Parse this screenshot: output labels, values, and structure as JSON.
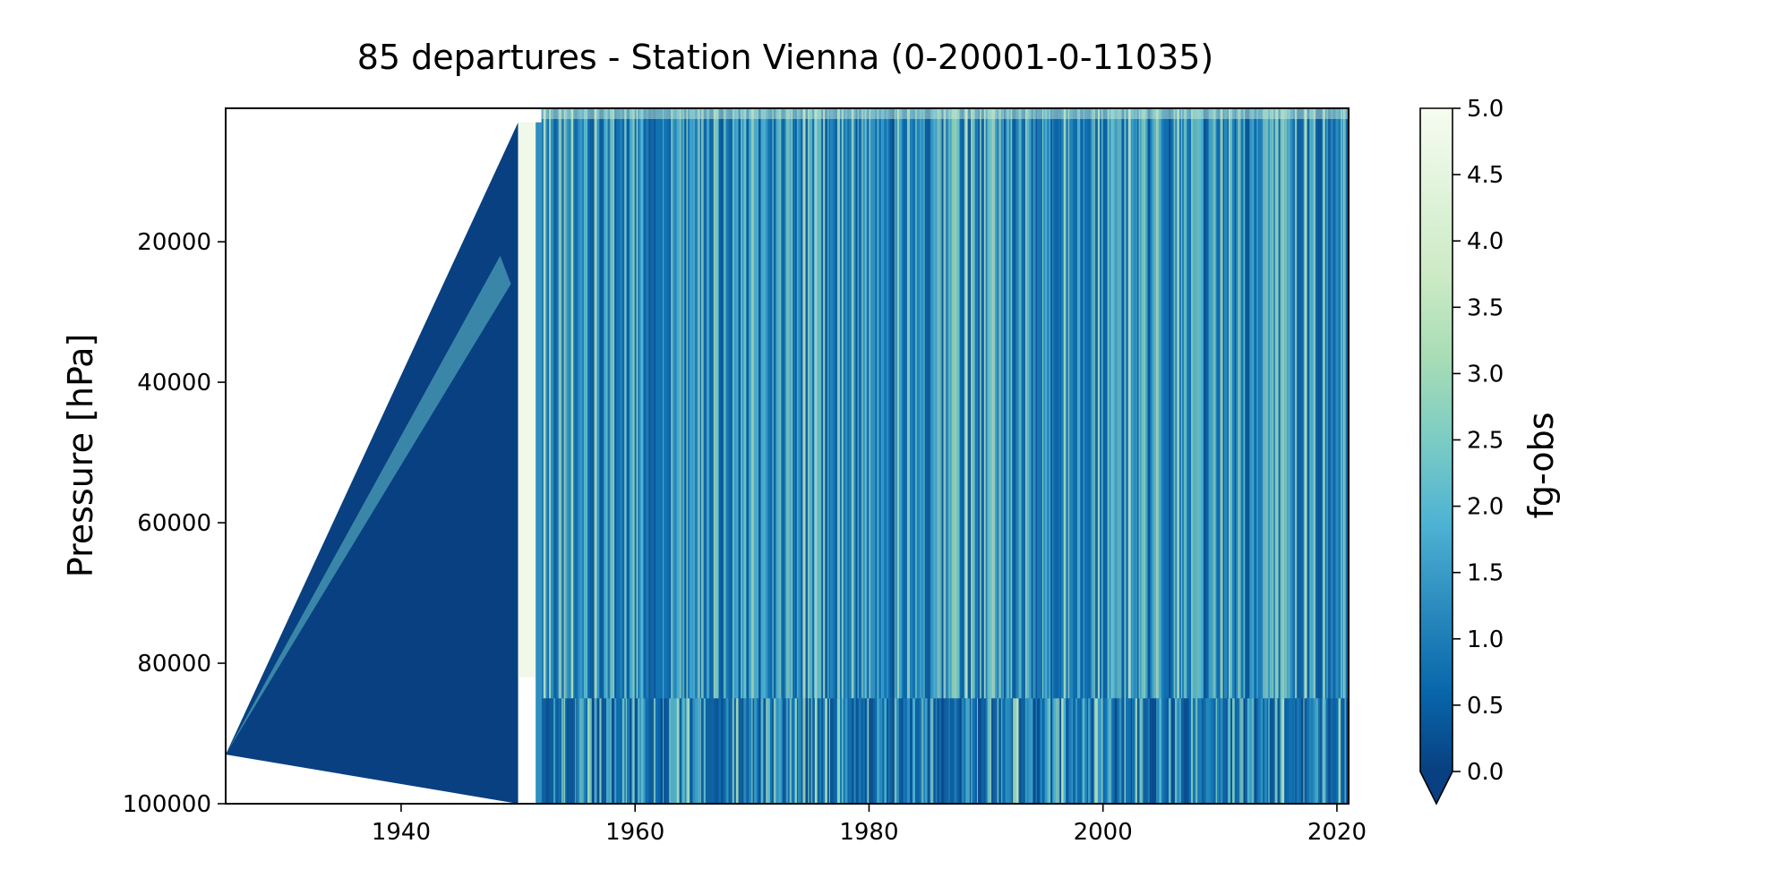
{
  "chart_data": {
    "type": "heatmap",
    "title": "85 departures - Station Vienna (0-20001-0-11035)",
    "xlabel": "",
    "ylabel": "Pressure [hPa]",
    "colorbar_label": "fg-obs",
    "x_range": [
      1925,
      2021
    ],
    "y_range": [
      1000,
      100000
    ],
    "y_inverted": true,
    "x_ticks": [
      1940,
      1960,
      1980,
      2000,
      2020
    ],
    "y_ticks": [
      20000,
      40000,
      60000,
      80000,
      100000
    ],
    "colorbar_ticks": [
      "0.0",
      "0.5",
      "1.0",
      "1.5",
      "2.0",
      "2.5",
      "3.0",
      "3.5",
      "4.0",
      "4.5",
      "5.0"
    ],
    "colorbar_range": [
      0.0,
      5.0
    ],
    "colorbar_extend": "min",
    "colormap": "GnBu_r",
    "colormap_stops": [
      "#084081",
      "#0868ac",
      "#2b8cbe",
      "#4eb3d3",
      "#7bccc4",
      "#a8ddb5",
      "#ccebc5",
      "#e0f3db",
      "#f7fcf0"
    ],
    "field_regions": {
      "sparse_triangle": {
        "x": [
          1925,
          1950
        ],
        "y_at_start": 93000,
        "y_top_at_end": 3000,
        "y_bottom_at_end": 100000,
        "typical_value": 0.0
      },
      "bright_band": {
        "x": [
          1950,
          1951.5
        ],
        "typical_value": 4.8
      },
      "dense_record": {
        "x": [
          1952,
          2021
        ],
        "typical_value": 1.0,
        "noisy_level_range": [
          85000,
          100000
        ]
      }
    },
    "grid": false
  }
}
